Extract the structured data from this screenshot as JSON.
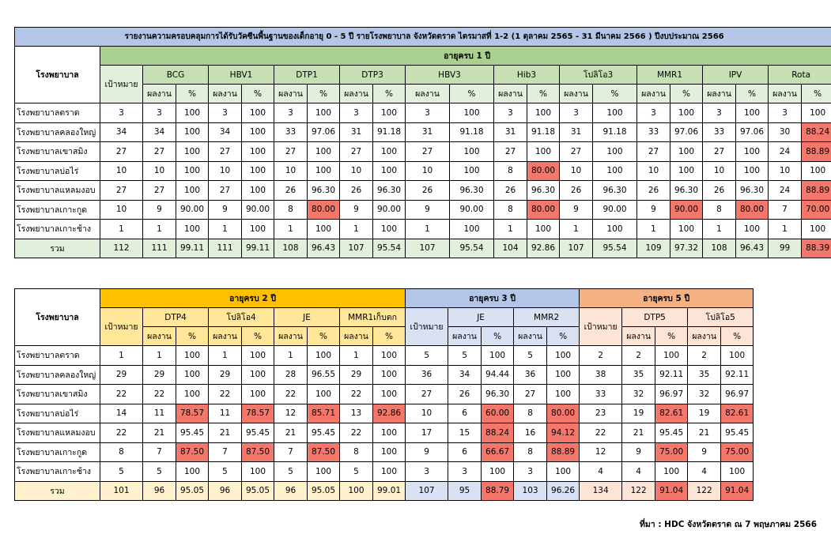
{
  "report_title": "รายงานความครอบคลุมการได้รับวัคซีนพื้นฐานของเด็กอายุ 0 - 5 ปี รายโรงพยาบาล จังหวัดตราด ไตรมาสที่ 1-2 (1 ตุลาคม 2565 - 31 มีนาคม 2566 ) ปีงบประมาณ 2566",
  "source_note": "ที่มา : HDC จังหวัดตราด ณ 7 พฤษภาคม 2566",
  "labels": {
    "hospital": "โรงพยาบาล",
    "target": "เป้าหมาย",
    "result": "ผลงาน",
    "percent": "%"
  },
  "highlight_color": "#f4776b",
  "table1": {
    "age_group": "อายุครบ 1 ปี",
    "vaccines": [
      "BCG",
      "HBV1",
      "DTP1",
      "DTP3",
      "HBV3",
      "Hib3",
      "โปลิโอ3",
      "MMR1",
      "IPV",
      "Rota"
    ],
    "rows": [
      {
        "hospital": "โรงพยาบาลตราด",
        "target": "3",
        "cells": [
          "3",
          "100",
          "3",
          "100",
          "3",
          "100",
          "3",
          "100",
          "3",
          "100",
          "3",
          "100",
          "3",
          "100",
          "3",
          "100",
          "3",
          "100",
          "3",
          "100"
        ],
        "low": []
      },
      {
        "hospital": "โรงพยาบาลคลองใหญ่",
        "target": "34",
        "cells": [
          "34",
          "100",
          "34",
          "100",
          "33",
          "97.06",
          "31",
          "91.18",
          "31",
          "91.18",
          "31",
          "91.18",
          "31",
          "91.18",
          "33",
          "97.06",
          "33",
          "97.06",
          "30",
          "88.24"
        ],
        "low": [
          19
        ]
      },
      {
        "hospital": "โรงพยาบาลเขาสมิง",
        "target": "27",
        "cells": [
          "27",
          "100",
          "27",
          "100",
          "27",
          "100",
          "27",
          "100",
          "27",
          "100",
          "27",
          "100",
          "27",
          "100",
          "27",
          "100",
          "27",
          "100",
          "24",
          "88.89"
        ],
        "low": [
          19
        ]
      },
      {
        "hospital": "โรงพยาบาลบ่อไร่",
        "target": "10",
        "cells": [
          "10",
          "100",
          "10",
          "100",
          "10",
          "100",
          "10",
          "100",
          "10",
          "100",
          "8",
          "80.00",
          "10",
          "100",
          "10",
          "100",
          "10",
          "100",
          "10",
          "100"
        ],
        "low": [
          11
        ]
      },
      {
        "hospital": "โรงพยาบาลแหลมงอบ",
        "target": "27",
        "cells": [
          "27",
          "100",
          "27",
          "100",
          "26",
          "96.30",
          "26",
          "96.30",
          "26",
          "96.30",
          "26",
          "96.30",
          "26",
          "96.30",
          "26",
          "96.30",
          "26",
          "96.30",
          "24",
          "88.89"
        ],
        "low": [
          19
        ]
      },
      {
        "hospital": "โรงพยาบาลเกาะกูด",
        "target": "10",
        "cells": [
          "9",
          "90.00",
          "9",
          "90.00",
          "8",
          "80.00",
          "9",
          "90.00",
          "9",
          "90.00",
          "8",
          "80.00",
          "9",
          "90.00",
          "9",
          "90.00",
          "8",
          "80.00",
          "7",
          "70.00"
        ],
        "low": [
          5,
          11,
          15,
          17,
          19
        ]
      },
      {
        "hospital": "โรงพยาบาลเกาะช้าง",
        "target": "1",
        "cells": [
          "1",
          "100",
          "1",
          "100",
          "1",
          "100",
          "1",
          "100",
          "1",
          "100",
          "1",
          "100",
          "1",
          "100",
          "1",
          "100",
          "1",
          "100",
          "1",
          "100"
        ],
        "low": []
      }
    ],
    "total": {
      "label": "รวม",
      "target": "112",
      "cells": [
        "111",
        "99.11",
        "111",
        "99.11",
        "108",
        "96.43",
        "107",
        "95.54",
        "107",
        "95.54",
        "104",
        "92.86",
        "107",
        "95.54",
        "109",
        "97.32",
        "108",
        "96.43",
        "99",
        "88.39"
      ],
      "low": [
        19
      ]
    }
  },
  "table2": {
    "age2": {
      "title": "อายุครบ 2 ปี",
      "vaccines": [
        "DTP4",
        "โปลิโอ4",
        "JE",
        "MMR1เก็บตก"
      ]
    },
    "age3": {
      "title": "อายุครบ 3 ปี",
      "vaccines": [
        "JE",
        "MMR2"
      ]
    },
    "age5": {
      "title": "อายุครบ 5 ปี",
      "vaccines": [
        "DTP5",
        "โปลิโอ5"
      ]
    },
    "rows": [
      {
        "hospital": "โรงพยาบาลตราด",
        "cells": [
          "1",
          "1",
          "100",
          "1",
          "100",
          "1",
          "100",
          "1",
          "100",
          "5",
          "5",
          "100",
          "5",
          "100",
          "2",
          "2",
          "100",
          "2",
          "100"
        ],
        "low": []
      },
      {
        "hospital": "โรงพยาบาลคลองใหญ่",
        "cells": [
          "29",
          "29",
          "100",
          "29",
          "100",
          "28",
          "96.55",
          "29",
          "100",
          "36",
          "34",
          "94.44",
          "36",
          "100",
          "38",
          "35",
          "92.11",
          "35",
          "92.11"
        ],
        "low": []
      },
      {
        "hospital": "โรงพยาบาลเขาสมิง",
        "cells": [
          "22",
          "22",
          "100",
          "22",
          "100",
          "22",
          "100",
          "22",
          "100",
          "27",
          "26",
          "96.30",
          "27",
          "100",
          "33",
          "32",
          "96.97",
          "32",
          "96.97"
        ],
        "low": []
      },
      {
        "hospital": "โรงพยาบาลบ่อไร่",
        "cells": [
          "14",
          "11",
          "78.57",
          "11",
          "78.57",
          "12",
          "85.71",
          "13",
          "92.86",
          "10",
          "6",
          "60.00",
          "8",
          "80.00",
          "23",
          "19",
          "82.61",
          "19",
          "82.61"
        ],
        "low": [
          2,
          4,
          6,
          8,
          11,
          13,
          16,
          18
        ]
      },
      {
        "hospital": "โรงพยาบาลแหลมงอบ",
        "cells": [
          "22",
          "21",
          "95.45",
          "21",
          "95.45",
          "21",
          "95.45",
          "22",
          "100",
          "17",
          "15",
          "88.24",
          "16",
          "94.12",
          "22",
          "21",
          "95.45",
          "21",
          "95.45"
        ],
        "low": [
          11,
          13
        ]
      },
      {
        "hospital": "โรงพยาบาลเกาะกูด",
        "cells": [
          "8",
          "7",
          "87.50",
          "7",
          "87.50",
          "7",
          "87.50",
          "8",
          "100",
          "9",
          "6",
          "66.67",
          "8",
          "88.89",
          "12",
          "9",
          "75.00",
          "9",
          "75.00"
        ],
        "low": [
          2,
          4,
          6,
          11,
          13,
          16,
          18
        ]
      },
      {
        "hospital": "โรงพยาบาลเกาะช้าง",
        "cells": [
          "5",
          "5",
          "100",
          "5",
          "100",
          "5",
          "100",
          "5",
          "100",
          "3",
          "3",
          "100",
          "3",
          "100",
          "4",
          "4",
          "100",
          "4",
          "100"
        ],
        "low": []
      }
    ],
    "total": {
      "label": "รวม",
      "cells": [
        "101",
        "96",
        "95.05",
        "96",
        "95.05",
        "96",
        "95.05",
        "100",
        "99.01",
        "107",
        "95",
        "88.79",
        "103",
        "96.26",
        "134",
        "122",
        "91.04",
        "122",
        "91.04"
      ],
      "low": [
        11,
        16,
        18
      ]
    }
  }
}
